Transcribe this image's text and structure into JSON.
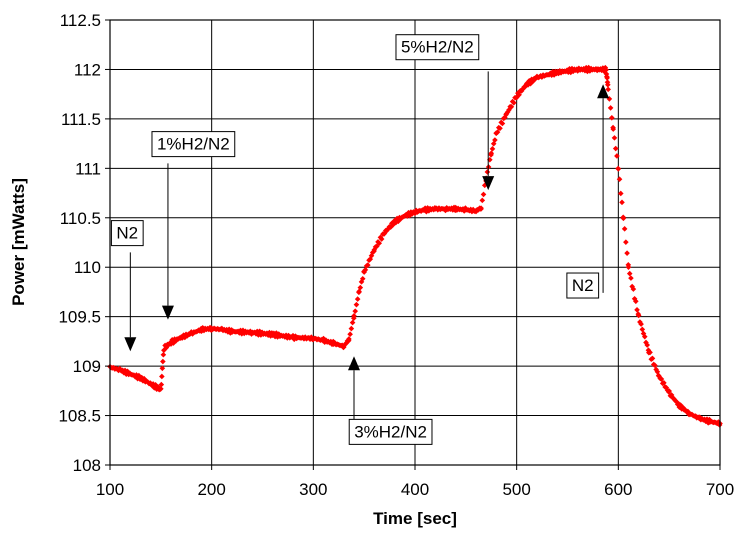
{
  "chart_data": {
    "type": "scatter",
    "title": "",
    "xlabel": "Time [sec]",
    "ylabel": "Power [mWatts]",
    "xlim": [
      100,
      700
    ],
    "ylim": [
      108,
      112.5
    ],
    "xticks": [
      100,
      200,
      300,
      400,
      500,
      600,
      700
    ],
    "yticks": [
      108,
      108.5,
      109,
      109.5,
      110,
      110.5,
      111,
      111.5,
      112,
      112.5
    ],
    "xtick_labels": [
      "100",
      "200",
      "300",
      "400",
      "500",
      "600",
      "700"
    ],
    "ytick_labels": [
      "108",
      "108.5",
      "109",
      "109.5",
      "110",
      "110.5",
      "111",
      "111.5",
      "112",
      "112.5"
    ],
    "grid": true,
    "legend": "none",
    "colors": {
      "series": "#ff0000",
      "grid": "#000000",
      "axis": "#000000"
    },
    "series": [
      {
        "marker": "diamond",
        "x": [
          100,
          110,
          120,
          130,
          140,
          150,
          153,
          160,
          170,
          180,
          190,
          200,
          210,
          220,
          240,
          260,
          280,
          300,
          310,
          320,
          330,
          335,
          340,
          345,
          350,
          360,
          370,
          380,
          390,
          400,
          410,
          420,
          430,
          440,
          450,
          460,
          465,
          470,
          475,
          480,
          490,
          500,
          510,
          520,
          540,
          560,
          580,
          588,
          590,
          595,
          600,
          605,
          610,
          620,
          630,
          640,
          650,
          660,
          670,
          680,
          690,
          700
        ],
        "y": [
          108.99,
          108.96,
          108.92,
          108.88,
          108.82,
          108.76,
          109.18,
          109.24,
          109.29,
          109.33,
          109.37,
          109.38,
          109.37,
          109.35,
          109.34,
          109.32,
          109.29,
          109.28,
          109.26,
          109.23,
          109.2,
          109.27,
          109.5,
          109.75,
          109.95,
          110.18,
          110.35,
          110.46,
          110.52,
          110.56,
          110.58,
          110.59,
          110.59,
          110.59,
          110.58,
          110.57,
          110.6,
          110.9,
          111.15,
          111.35,
          111.55,
          111.73,
          111.85,
          111.92,
          111.97,
          112.0,
          112.0,
          112.0,
          111.8,
          111.4,
          111.0,
          110.5,
          110.0,
          109.5,
          109.15,
          108.9,
          108.73,
          108.6,
          108.52,
          108.47,
          108.44,
          108.42
        ]
      }
    ],
    "annotations": [
      {
        "text": "N2",
        "box": [
          117,
          110.35
        ],
        "arrow_from": [
          120,
          110.15
        ],
        "arrow_to": [
          120,
          109.15
        ]
      },
      {
        "text": "1%H2/N2",
        "box": [
          182,
          111.25
        ],
        "arrow_from": [
          157,
          111.05
        ],
        "arrow_to": [
          157,
          109.47
        ]
      },
      {
        "text": "3%H2/N2",
        "box": [
          376,
          108.34
        ],
        "arrow_from": [
          340,
          108.36
        ],
        "arrow_to": [
          340,
          109.1
        ]
      },
      {
        "text": "5%H2/N2",
        "box": [
          422,
          112.23
        ],
        "arrow_from": [
          472,
          111.98
        ],
        "arrow_to": [
          472,
          110.78
        ]
      },
      {
        "text": "N2",
        "box": [
          565,
          109.82
        ],
        "arrow_from": [
          585,
          109.74
        ],
        "arrow_to": [
          585,
          111.85
        ]
      }
    ]
  }
}
